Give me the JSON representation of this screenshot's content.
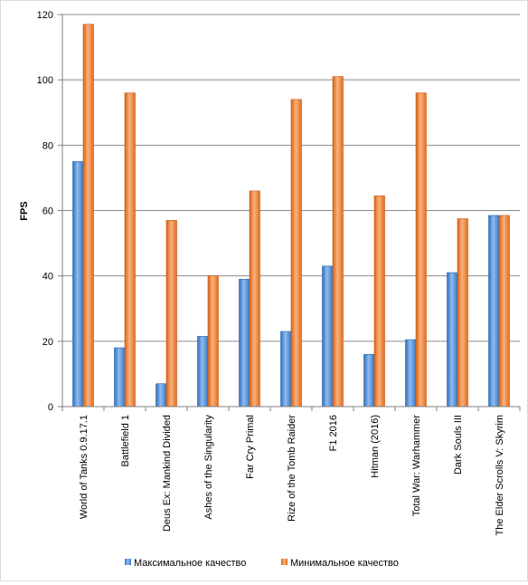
{
  "chart_data": {
    "type": "bar",
    "title": "",
    "xlabel": "",
    "ylabel": "FPS",
    "ylim": [
      0,
      120
    ],
    "yticks": [
      0,
      20,
      40,
      60,
      80,
      100,
      120
    ],
    "grid": true,
    "legend_position": "bottom",
    "categories": [
      "World of Tanks 0.9.17.1",
      "Battlefield 1",
      "Deus Ex: Mankind Divided",
      "Ashes of the Singularity",
      "Far Cry Primal",
      "Rize of the Tomb Raider",
      "F1 2016",
      "Hitman (2016)",
      "Total War: Warhammer",
      "Dark Souls III",
      "The Elder Scrolls V: Skyrim"
    ],
    "series": [
      {
        "name": "Максимальное качество",
        "color": "#4f8fd9",
        "values": [
          75,
          18,
          7,
          21.5,
          39,
          23,
          43,
          16,
          20.5,
          41,
          58.5
        ]
      },
      {
        "name": "Минимальное качество",
        "color": "#f07d28",
        "values": [
          117,
          96,
          57,
          40,
          66,
          94,
          101,
          64.5,
          96,
          57.5,
          58.5
        ]
      }
    ]
  }
}
